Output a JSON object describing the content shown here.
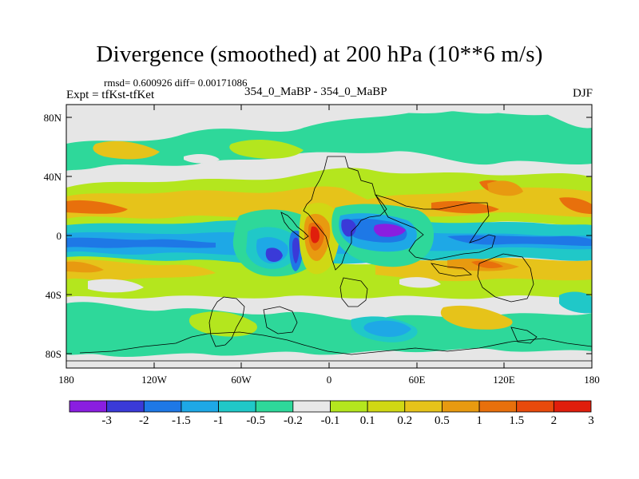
{
  "title": "Divergence (smoothed) at 200 hPa (10**6 m/s)",
  "stats": "rmsd= 0.600926 diff= 0.00171086",
  "expt": "Expt = tfKst-tfKet",
  "center_label": "354_0_MaBP - 354_0_MaBP",
  "season": "DJF",
  "lat_labels": [
    "80N",
    "40N",
    "0",
    "40S",
    "80S"
  ],
  "lon_labels": [
    "180",
    "120W",
    "60W",
    "0",
    "60E",
    "120E",
    "180"
  ],
  "colorbar": {
    "labels": [
      "-3",
      "-2",
      "-1.5",
      "-1",
      "-0.5",
      "-0.2",
      "-0.1",
      "0.1",
      "0.2",
      "0.5",
      "1",
      "1.5",
      "2",
      "3"
    ],
    "colors": [
      "#8a1ee0",
      "#3a3ad8",
      "#1e78e6",
      "#1ea8e6",
      "#20c8c8",
      "#2ed89a",
      "#e8e8e8",
      "#b4e61e",
      "#d0d814",
      "#e6c31a",
      "#e89a10",
      "#e8700c",
      "#e84a0c",
      "#e01e0c"
    ]
  },
  "map_colors": {
    "background": "#e6e6e6",
    "green": "#2ed89a",
    "cyan": "#20c8c8",
    "lightblue": "#1ea8e6",
    "blue": "#1e78e6",
    "darkblue": "#3a3ad8",
    "purple": "#8a1ee0",
    "lime": "#b4e61e",
    "yellow": "#d0d814",
    "gold": "#e6c31a",
    "orange": "#e89a10",
    "darkorange": "#e8700c",
    "red": "#e84a0c",
    "darkred": "#e01e0c"
  }
}
